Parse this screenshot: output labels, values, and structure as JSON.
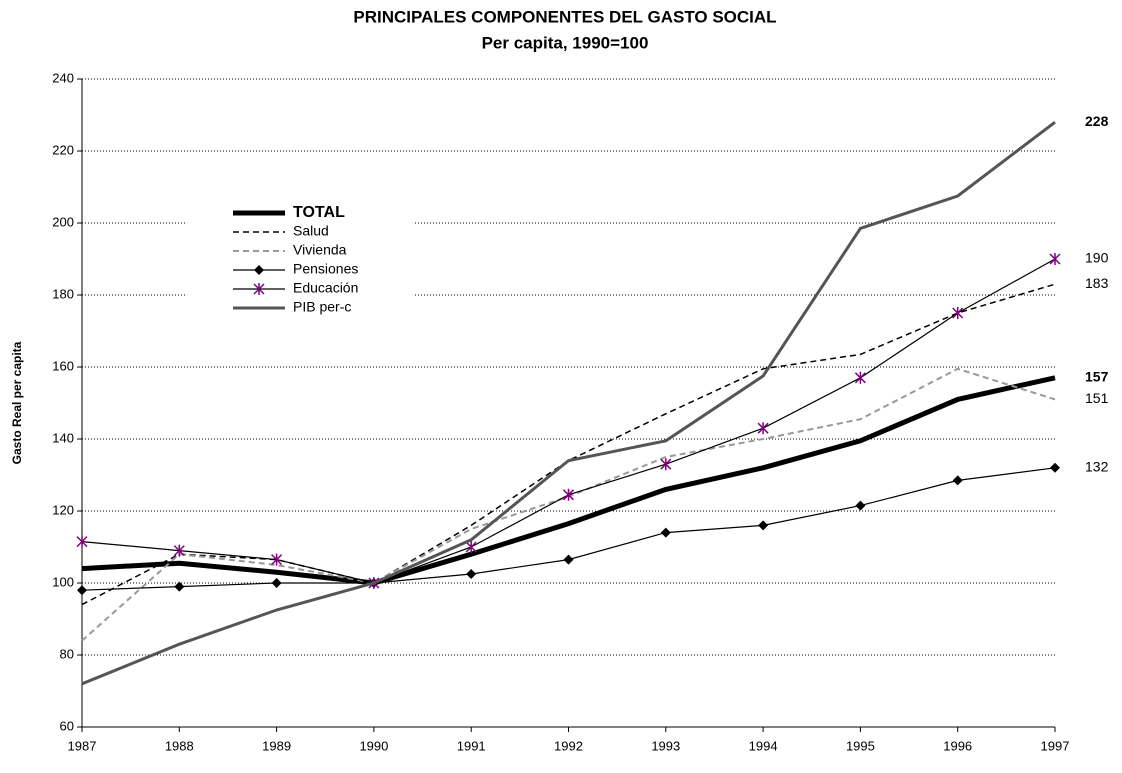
{
  "chart_data": {
    "type": "line",
    "title": "PRINCIPALES COMPONENTES DEL GASTO SOCIAL",
    "subtitle": "Per capita, 1990=100",
    "y_label": "Gasto Real per capita",
    "x": [
      1987,
      1988,
      1989,
      1990,
      1991,
      1992,
      1993,
      1994,
      1995,
      1996,
      1997
    ],
    "xlim": [
      1987,
      1997
    ],
    "xticks": [
      1987,
      1988,
      1989,
      1990,
      1991,
      1992,
      1993,
      1994,
      1995,
      1996,
      1997
    ],
    "ylim": [
      60,
      240
    ],
    "yticks": [
      60,
      80,
      100,
      120,
      140,
      160,
      180,
      200,
      220,
      240
    ],
    "grid": true,
    "series": [
      {
        "name": "TOTAL",
        "color": "#000000",
        "width": 5,
        "dash": "none",
        "marker": "none",
        "values": [
          104,
          105.5,
          103,
          100,
          108,
          116.5,
          126,
          132,
          139.5,
          151,
          157
        ]
      },
      {
        "name": "Salud",
        "color": "#000000",
        "width": 1.5,
        "dash": "6,4",
        "marker": "none",
        "values": [
          94,
          108,
          106.5,
          100,
          116,
          134,
          147,
          159.5,
          163.5,
          175,
          183
        ]
      },
      {
        "name": "Vivienda",
        "color": "#999999",
        "width": 2,
        "dash": "6,4",
        "marker": "none",
        "values": [
          84,
          108,
          105,
          100,
          115,
          124,
          135,
          140,
          145.5,
          159.5,
          151
        ]
      },
      {
        "name": "Pensiones",
        "color": "#000000",
        "width": 1.2,
        "dash": "none",
        "marker": "diamond",
        "values": [
          98,
          99,
          100,
          100,
          102.5,
          106.5,
          114,
          116,
          121.5,
          128.5,
          132
        ]
      },
      {
        "name": "Educación",
        "color": "#000000",
        "width": 1.2,
        "dash": "none",
        "marker": "asterisk",
        "marker_color": "#800080",
        "values": [
          111.5,
          109,
          106.5,
          100,
          110,
          124.5,
          133,
          143,
          157,
          175,
          190
        ]
      },
      {
        "name": "PIB per-c",
        "color": "#555555",
        "width": 3,
        "dash": "none",
        "marker": "none",
        "values": [
          72,
          83,
          92.5,
          100,
          112,
          134,
          139.5,
          157.5,
          198.5,
          207.5,
          228
        ]
      }
    ]
  }
}
